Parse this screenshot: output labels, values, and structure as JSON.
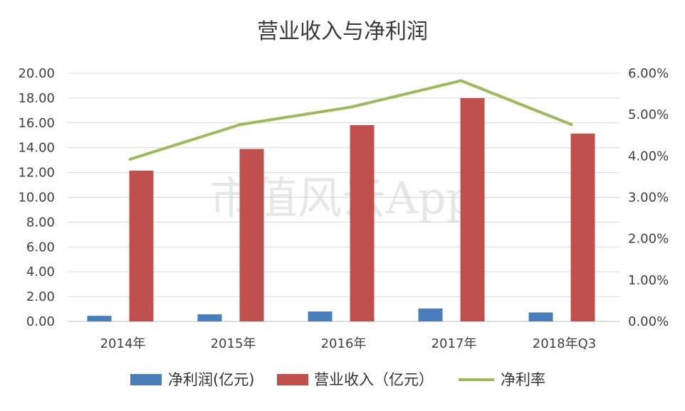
{
  "watermark": "市值风云App",
  "colors": {
    "net_profit": "#4a7ebb",
    "revenue": "#c0504d",
    "margin": "#9bbb59",
    "grid": "#d9d9d9",
    "axis": "#bfbfbf"
  },
  "chart_data": {
    "type": "bar",
    "title": "营业收入与净利润",
    "categories": [
      "2014年",
      "2015年",
      "2016年",
      "2017年",
      "2018年Q3"
    ],
    "y_left": {
      "ylim": [
        0,
        20
      ],
      "ticks": [
        "0.00",
        "2.00",
        "4.00",
        "6.00",
        "8.00",
        "10.00",
        "12.00",
        "14.00",
        "16.00",
        "18.00",
        "20.00"
      ]
    },
    "y_right": {
      "ylim": [
        0,
        6
      ],
      "ticks": [
        "0.00%",
        "1.00%",
        "2.00%",
        "3.00%",
        "4.00%",
        "5.00%",
        "6.00%"
      ]
    },
    "series": [
      {
        "name": "净利润(亿元)",
        "type": "bar",
        "axis": "left",
        "values": [
          0.45,
          0.57,
          0.8,
          1.04,
          0.72
        ]
      },
      {
        "name": "营业收入（亿元）",
        "type": "bar",
        "axis": "left",
        "values": [
          12.15,
          13.9,
          15.82,
          18.0,
          15.14
        ]
      },
      {
        "name": "净利率",
        "type": "line",
        "axis": "right",
        "values": [
          3.92,
          4.76,
          5.18,
          5.82,
          4.76
        ]
      }
    ],
    "legend": "bottom",
    "grid": true
  }
}
